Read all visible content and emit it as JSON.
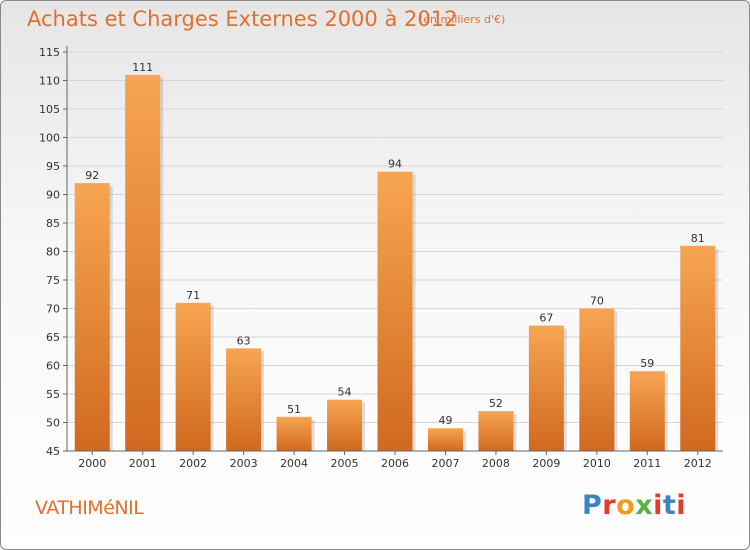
{
  "header": {
    "title": "Achats et Charges Externes 2000 à 2012",
    "subtitle": "(en milliers d'€)"
  },
  "footer": {
    "town": "VATHIMéNIL",
    "brand": "Proxiti",
    "brand_colors": [
      "#3a84c4",
      "#e8392b",
      "#f29a1f",
      "#5bb146",
      "#e8392b",
      "#3a84c4",
      "#e8392b"
    ]
  },
  "colors": {
    "bar_top": "#f7a552",
    "bar_bottom": "#d0691f",
    "accent": "#e0702c",
    "grid": "#d6d6d6"
  },
  "chart_data": {
    "type": "bar",
    "title": "Achats et Charges Externes 2000 à 2012",
    "xlabel": "",
    "ylabel": "",
    "categories": [
      "2000",
      "2001",
      "2002",
      "2003",
      "2004",
      "2005",
      "2006",
      "2007",
      "2008",
      "2009",
      "2010",
      "2011",
      "2012"
    ],
    "values": [
      92,
      111,
      71,
      63,
      51,
      54,
      94,
      49,
      52,
      67,
      70,
      59,
      81
    ],
    "ylim": [
      45,
      115
    ],
    "yticks": [
      45,
      50,
      55,
      60,
      65,
      70,
      75,
      80,
      85,
      90,
      95,
      100,
      105,
      110,
      115
    ],
    "grid": true
  }
}
